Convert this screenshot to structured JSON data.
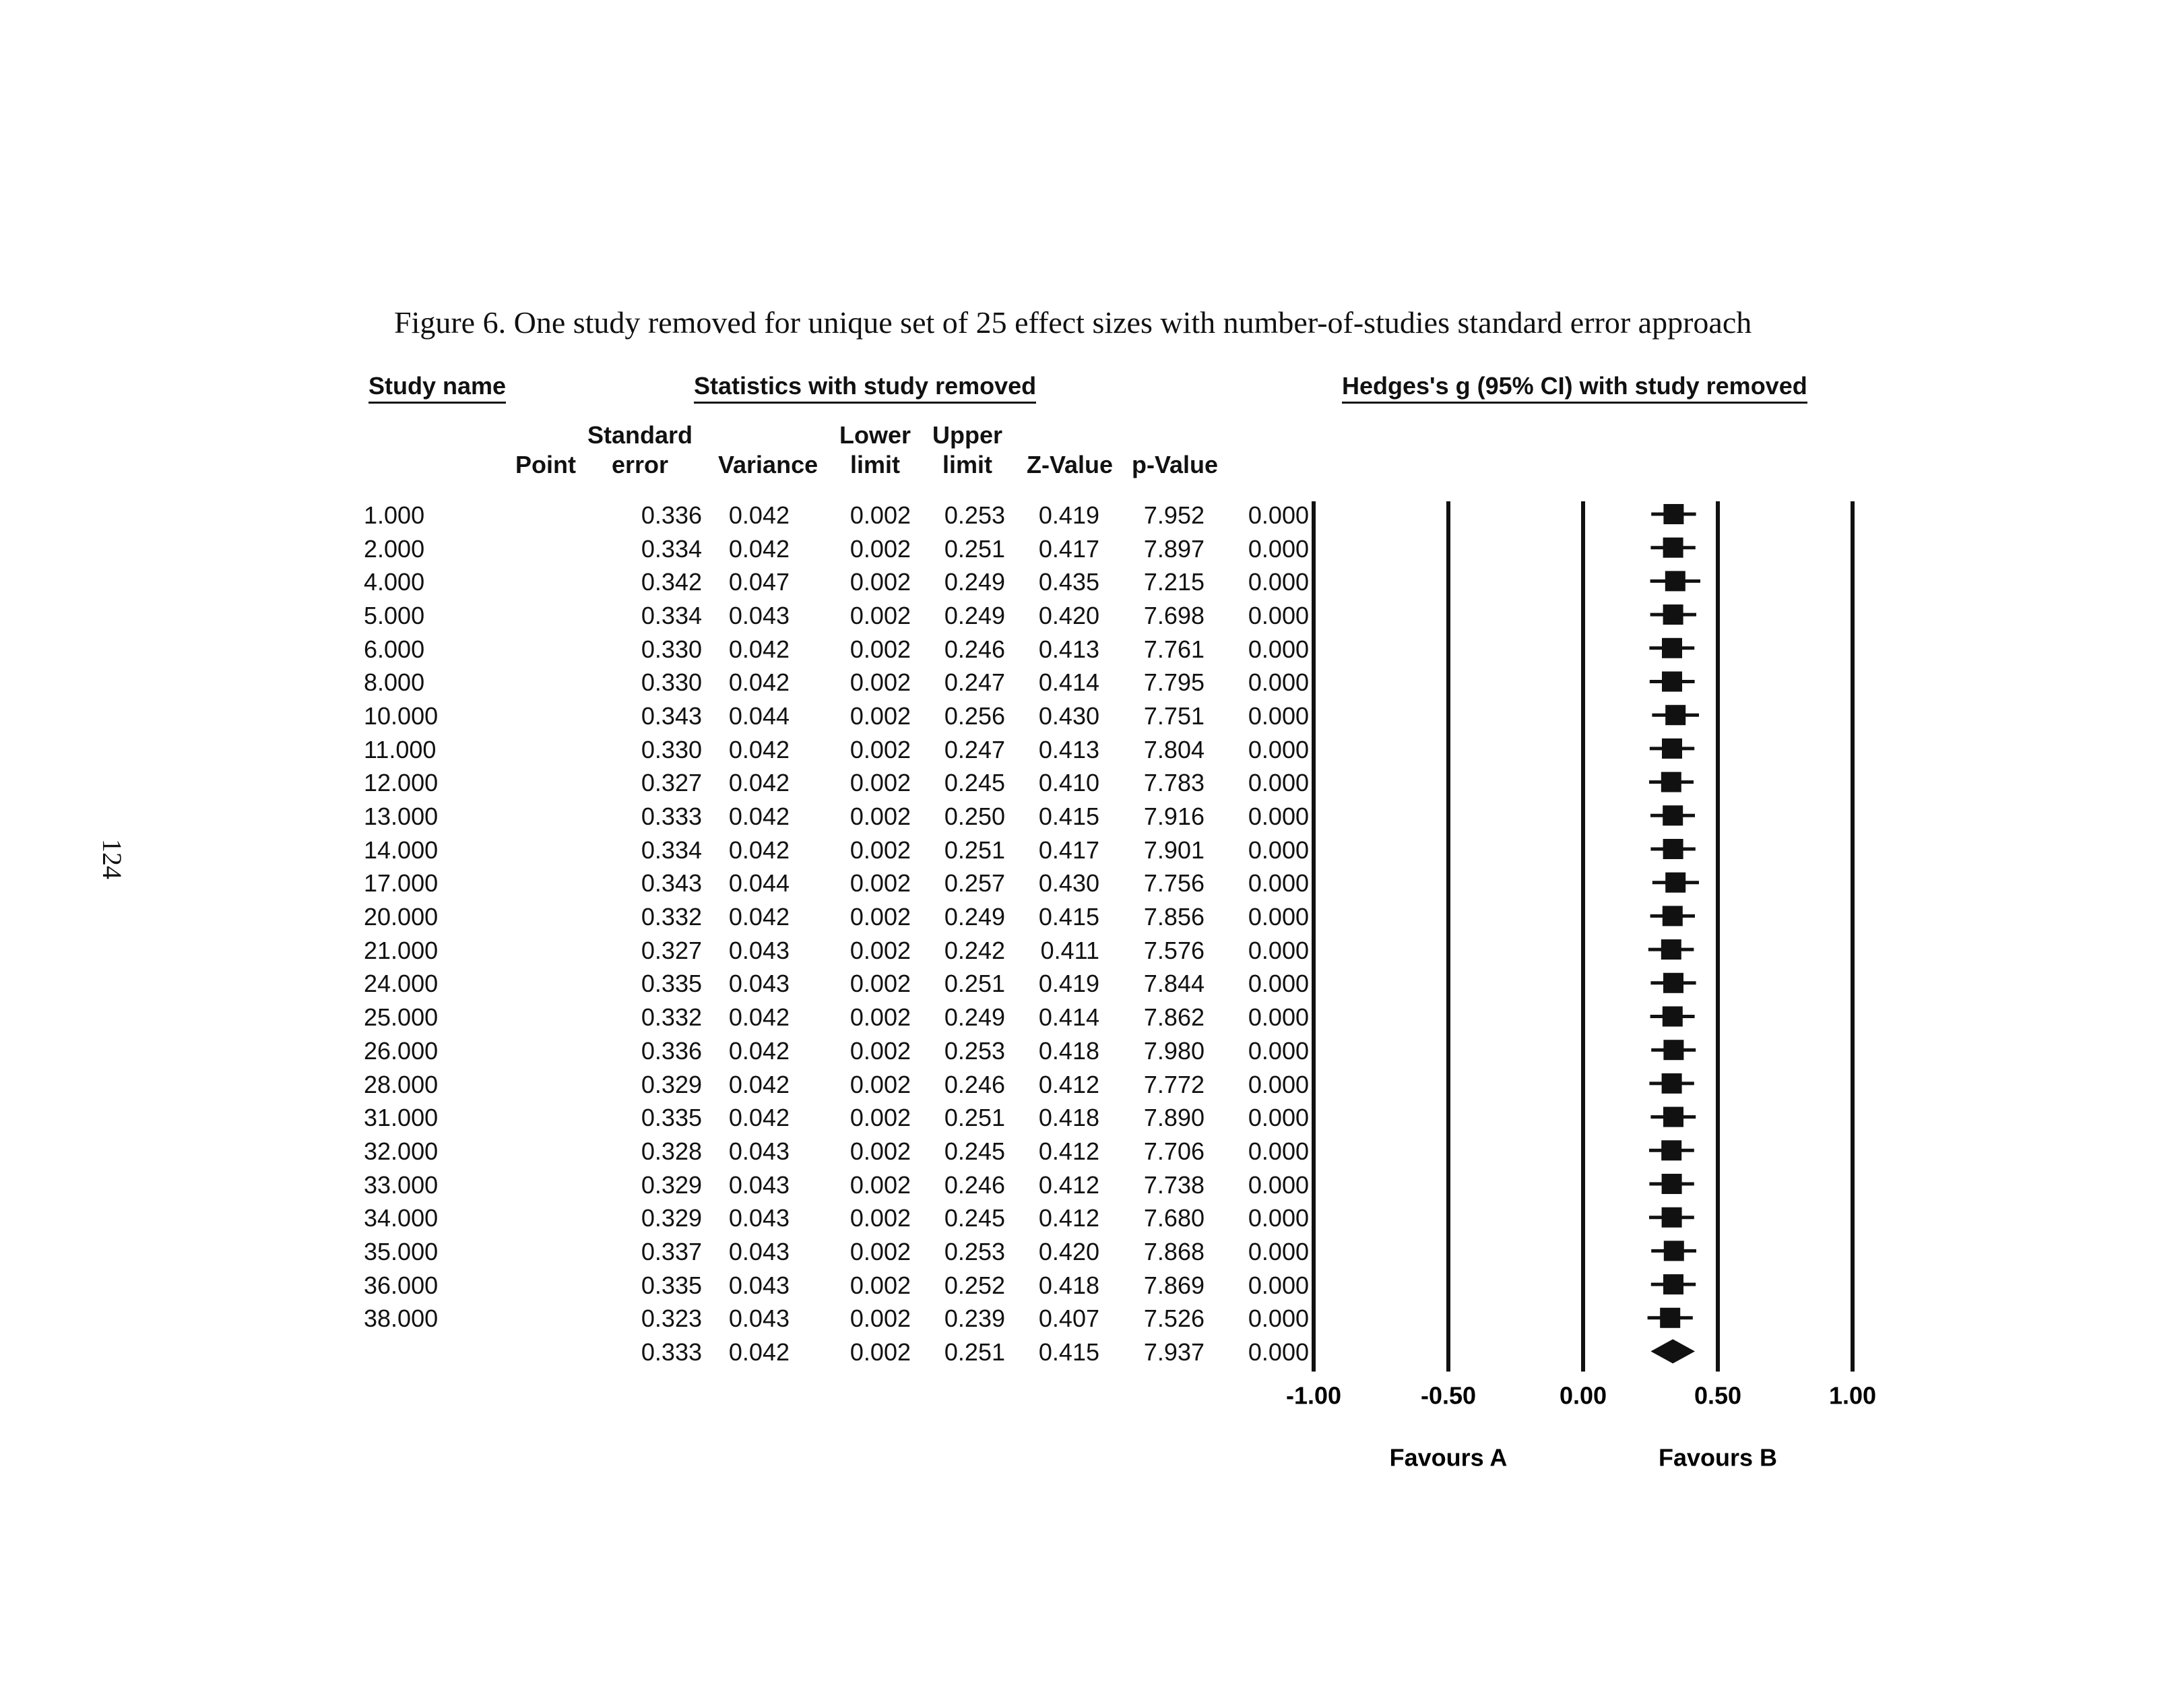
{
  "page_number": "124",
  "caption": "Figure 6. One study removed for unique set of 25 effect sizes with number-of-studies standard error approach",
  "headers": {
    "study_name": "Study name",
    "statistics": "Statistics with study removed",
    "plot": "Hedges's g (95% CI) with study removed"
  },
  "columns": {
    "point": "Point",
    "se_line1": "Standard",
    "se_line2": "error",
    "variance": "Variance",
    "lower_line1": "Lower",
    "lower_line2": "limit",
    "upper_line1": "Upper",
    "upper_line2": "limit",
    "z": "Z-Value",
    "p": "p-Value"
  },
  "rows": [
    [
      "1.000",
      "0.336",
      "0.042",
      "0.002",
      "0.253",
      "0.419",
      "7.952",
      "0.000"
    ],
    [
      "2.000",
      "0.334",
      "0.042",
      "0.002",
      "0.251",
      "0.417",
      "7.897",
      "0.000"
    ],
    [
      "4.000",
      "0.342",
      "0.047",
      "0.002",
      "0.249",
      "0.435",
      "7.215",
      "0.000"
    ],
    [
      "5.000",
      "0.334",
      "0.043",
      "0.002",
      "0.249",
      "0.420",
      "7.698",
      "0.000"
    ],
    [
      "6.000",
      "0.330",
      "0.042",
      "0.002",
      "0.246",
      "0.413",
      "7.761",
      "0.000"
    ],
    [
      "8.000",
      "0.330",
      "0.042",
      "0.002",
      "0.247",
      "0.414",
      "7.795",
      "0.000"
    ],
    [
      "10.000",
      "0.343",
      "0.044",
      "0.002",
      "0.256",
      "0.430",
      "7.751",
      "0.000"
    ],
    [
      "11.000",
      "0.330",
      "0.042",
      "0.002",
      "0.247",
      "0.413",
      "7.804",
      "0.000"
    ],
    [
      "12.000",
      "0.327",
      "0.042",
      "0.002",
      "0.245",
      "0.410",
      "7.783",
      "0.000"
    ],
    [
      "13.000",
      "0.333",
      "0.042",
      "0.002",
      "0.250",
      "0.415",
      "7.916",
      "0.000"
    ],
    [
      "14.000",
      "0.334",
      "0.042",
      "0.002",
      "0.251",
      "0.417",
      "7.901",
      "0.000"
    ],
    [
      "17.000",
      "0.343",
      "0.044",
      "0.002",
      "0.257",
      "0.430",
      "7.756",
      "0.000"
    ],
    [
      "20.000",
      "0.332",
      "0.042",
      "0.002",
      "0.249",
      "0.415",
      "7.856",
      "0.000"
    ],
    [
      "21.000",
      "0.327",
      "0.043",
      "0.002",
      "0.242",
      "0.411",
      "7.576",
      "0.000"
    ],
    [
      "24.000",
      "0.335",
      "0.043",
      "0.002",
      "0.251",
      "0.419",
      "7.844",
      "0.000"
    ],
    [
      "25.000",
      "0.332",
      "0.042",
      "0.002",
      "0.249",
      "0.414",
      "7.862",
      "0.000"
    ],
    [
      "26.000",
      "0.336",
      "0.042",
      "0.002",
      "0.253",
      "0.418",
      "7.980",
      "0.000"
    ],
    [
      "28.000",
      "0.329",
      "0.042",
      "0.002",
      "0.246",
      "0.412",
      "7.772",
      "0.000"
    ],
    [
      "31.000",
      "0.335",
      "0.042",
      "0.002",
      "0.251",
      "0.418",
      "7.890",
      "0.000"
    ],
    [
      "32.000",
      "0.328",
      "0.043",
      "0.002",
      "0.245",
      "0.412",
      "7.706",
      "0.000"
    ],
    [
      "33.000",
      "0.329",
      "0.043",
      "0.002",
      "0.246",
      "0.412",
      "7.738",
      "0.000"
    ],
    [
      "34.000",
      "0.329",
      "0.043",
      "0.002",
      "0.245",
      "0.412",
      "7.680",
      "0.000"
    ],
    [
      "35.000",
      "0.337",
      "0.043",
      "0.002",
      "0.253",
      "0.420",
      "7.868",
      "0.000"
    ],
    [
      "36.000",
      "0.335",
      "0.043",
      "0.002",
      "0.252",
      "0.418",
      "7.869",
      "0.000"
    ],
    [
      "38.000",
      "0.323",
      "0.043",
      "0.002",
      "0.239",
      "0.407",
      "7.526",
      "0.000"
    ],
    [
      "",
      "0.333",
      "0.042",
      "0.002",
      "0.251",
      "0.415",
      "7.937",
      "0.000"
    ]
  ],
  "chart_data": {
    "type": "forest",
    "title": "Hedges's g (95% CI) with study removed",
    "xlim": [
      -1.0,
      1.0
    ],
    "x_ticks": [
      "-1.00",
      "-0.50",
      "0.00",
      "0.50",
      "1.00"
    ],
    "x_tick_values": [
      -1.0,
      -0.5,
      0.0,
      0.5,
      1.0
    ],
    "favours_left": "Favours A",
    "favours_right": "Favours B",
    "studies": [
      "1.000",
      "2.000",
      "4.000",
      "5.000",
      "6.000",
      "8.000",
      "10.000",
      "11.000",
      "12.000",
      "13.000",
      "14.000",
      "17.000",
      "20.000",
      "21.000",
      "24.000",
      "25.000",
      "26.000",
      "28.000",
      "31.000",
      "32.000",
      "33.000",
      "34.000",
      "35.000",
      "36.000",
      "38.000"
    ],
    "point": [
      0.336,
      0.334,
      0.342,
      0.334,
      0.33,
      0.33,
      0.343,
      0.33,
      0.327,
      0.333,
      0.334,
      0.343,
      0.332,
      0.327,
      0.335,
      0.332,
      0.336,
      0.329,
      0.335,
      0.328,
      0.329,
      0.329,
      0.337,
      0.335,
      0.323
    ],
    "lower": [
      0.253,
      0.251,
      0.249,
      0.249,
      0.246,
      0.247,
      0.256,
      0.247,
      0.245,
      0.25,
      0.251,
      0.257,
      0.249,
      0.242,
      0.251,
      0.249,
      0.253,
      0.246,
      0.251,
      0.245,
      0.246,
      0.245,
      0.253,
      0.252,
      0.239
    ],
    "upper": [
      0.419,
      0.417,
      0.435,
      0.42,
      0.413,
      0.414,
      0.43,
      0.413,
      0.41,
      0.415,
      0.417,
      0.43,
      0.415,
      0.411,
      0.419,
      0.414,
      0.418,
      0.412,
      0.418,
      0.412,
      0.412,
      0.412,
      0.42,
      0.418,
      0.407
    ],
    "summary": {
      "point": 0.333,
      "lower": 0.251,
      "upper": 0.415
    }
  }
}
